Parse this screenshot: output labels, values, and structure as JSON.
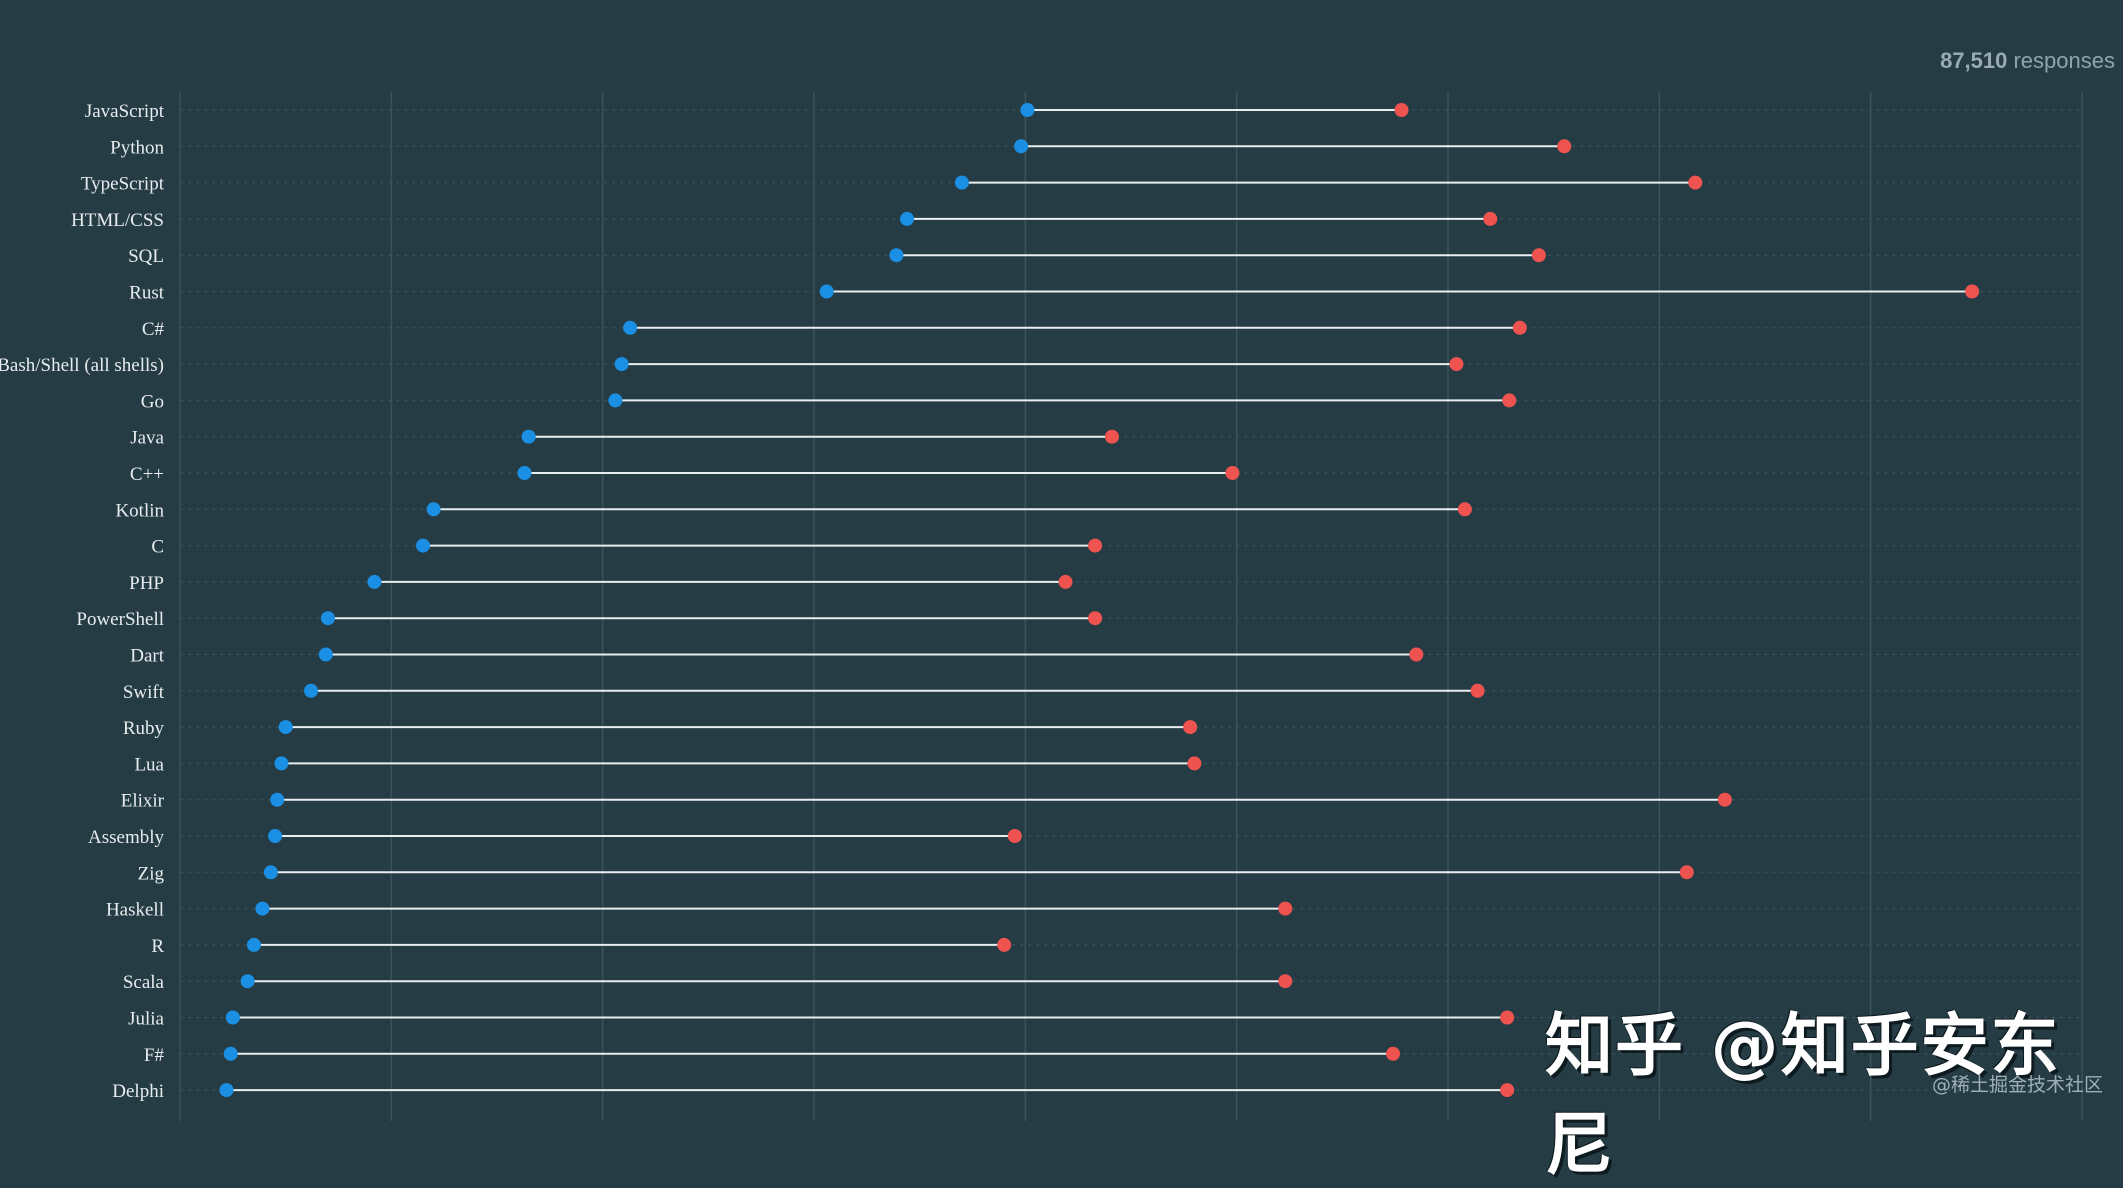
{
  "header": {
    "response_count": "87,510",
    "response_label": "responses"
  },
  "watermark": {
    "main": "知乎 @知乎安东尼",
    "sub": "@稀土掘金技术社区"
  },
  "colors": {
    "background": "#263c44",
    "used": "#1a8fe3",
    "want": "#ef5350",
    "connector": "#e8eef0"
  },
  "chart_data": {
    "type": "dumbbell",
    "title": "",
    "xlabel": "",
    "ylabel": "",
    "xlim": [
      0,
      90
    ],
    "grid": true,
    "series": [
      {
        "color": "#1a8fe3",
        "values": [
          40.1,
          39.8,
          37.0,
          34.4,
          33.9,
          30.6,
          21.3,
          20.9,
          20.6,
          16.5,
          16.3,
          12.0,
          11.5,
          9.2,
          7.0,
          6.9,
          6.2,
          5.0,
          4.8,
          4.6,
          4.5,
          4.3,
          3.9,
          3.5,
          3.2,
          2.5,
          2.4,
          2.2
        ]
      },
      {
        "color": "#ef5350",
        "values": [
          57.8,
          65.5,
          71.7,
          62.0,
          64.3,
          84.8,
          63.4,
          60.4,
          62.9,
          44.1,
          49.8,
          60.8,
          43.3,
          41.9,
          43.3,
          58.5,
          61.4,
          47.8,
          48.0,
          73.1,
          39.5,
          71.3,
          52.3,
          39.0,
          52.3,
          62.8,
          57.4,
          62.8
        ]
      }
    ],
    "categories": [
      "JavaScript",
      "Python",
      "TypeScript",
      "HTML/CSS",
      "SQL",
      "Rust",
      "C#",
      "Bash/Shell (all shells)",
      "Go",
      "Java",
      "C++",
      "Kotlin",
      "C",
      "PHP",
      "PowerShell",
      "Dart",
      "Swift",
      "Ruby",
      "Lua",
      "Elixir",
      "Assembly",
      "Zig",
      "Haskell",
      "R",
      "Scala",
      "Julia",
      "F#",
      "Delphi"
    ]
  }
}
